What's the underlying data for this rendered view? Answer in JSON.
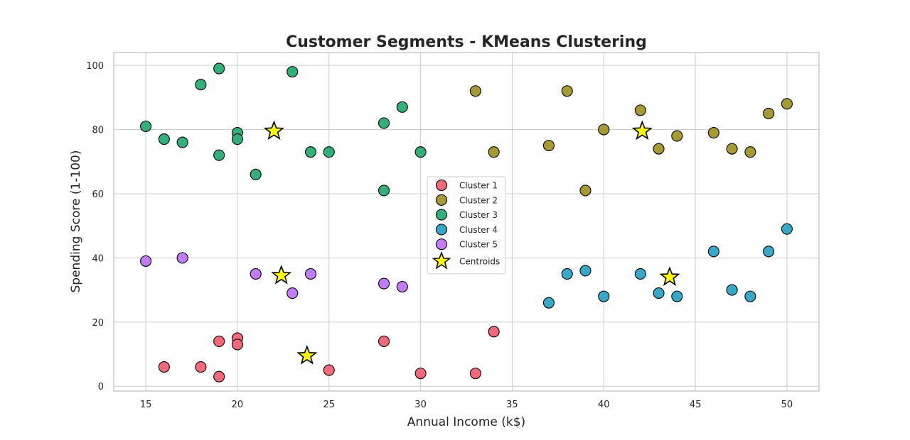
{
  "chart_data": {
    "type": "scatter",
    "title": "Customer Segments - KMeans Clustering",
    "xlabel": "Annual Income (k$)",
    "ylabel": "Spending Score (1-100)",
    "xlim": [
      13.25,
      51.75
    ],
    "ylim": [
      -1.5,
      104.0
    ],
    "xticks": [
      15,
      20,
      25,
      30,
      35,
      40,
      45,
      50
    ],
    "yticks": [
      0,
      20,
      40,
      60,
      80,
      100
    ],
    "grid": true,
    "legend": "center",
    "series": [
      {
        "name": "Cluster 1",
        "color": "#f2697a",
        "points": [
          [
            16,
            6
          ],
          [
            18,
            6
          ],
          [
            19,
            14
          ],
          [
            19,
            3
          ],
          [
            20,
            15
          ],
          [
            20,
            13
          ],
          [
            25,
            5
          ],
          [
            28,
            14
          ],
          [
            30,
            4
          ],
          [
            33,
            4
          ],
          [
            34,
            17
          ]
        ]
      },
      {
        "name": "Cluster 2",
        "color": "#a89a33",
        "points": [
          [
            33,
            92
          ],
          [
            34,
            73
          ],
          [
            37,
            75
          ],
          [
            38,
            92
          ],
          [
            39,
            61
          ],
          [
            40,
            80
          ],
          [
            42,
            86
          ],
          [
            43,
            74
          ],
          [
            44,
            78
          ],
          [
            46,
            79
          ],
          [
            47,
            74
          ],
          [
            48,
            73
          ],
          [
            49,
            85
          ],
          [
            50,
            88
          ]
        ]
      },
      {
        "name": "Cluster 3",
        "color": "#32b07a",
        "points": [
          [
            15,
            81
          ],
          [
            16,
            77
          ],
          [
            17,
            76
          ],
          [
            18,
            94
          ],
          [
            19,
            99
          ],
          [
            19,
            72
          ],
          [
            20,
            79
          ],
          [
            20,
            77
          ],
          [
            21,
            66
          ],
          [
            23,
            98
          ],
          [
            24,
            73
          ],
          [
            25,
            73
          ],
          [
            28,
            82
          ],
          [
            28,
            61
          ],
          [
            29,
            87
          ],
          [
            30,
            73
          ]
        ]
      },
      {
        "name": "Cluster 4",
        "color": "#36a9c8",
        "points": [
          [
            37,
            26
          ],
          [
            38,
            35
          ],
          [
            39,
            36
          ],
          [
            40,
            28
          ],
          [
            42,
            35
          ],
          [
            43,
            29
          ],
          [
            44,
            28
          ],
          [
            46,
            42
          ],
          [
            47,
            30
          ],
          [
            48,
            28
          ],
          [
            49,
            42
          ],
          [
            50,
            49
          ]
        ]
      },
      {
        "name": "Cluster 5",
        "color": "#c27cf7",
        "points": [
          [
            15,
            39
          ],
          [
            17,
            40
          ],
          [
            21,
            35
          ],
          [
            23,
            29
          ],
          [
            24,
            35
          ],
          [
            28,
            32
          ],
          [
            29,
            31
          ]
        ]
      }
    ],
    "centroids": {
      "name": "Centroids",
      "color": "#ffff00",
      "points": [
        [
          22.0,
          79.5
        ],
        [
          42.1,
          79.5
        ],
        [
          22.4,
          34.5
        ],
        [
          43.6,
          34.0
        ],
        [
          23.8,
          9.5
        ]
      ]
    }
  }
}
